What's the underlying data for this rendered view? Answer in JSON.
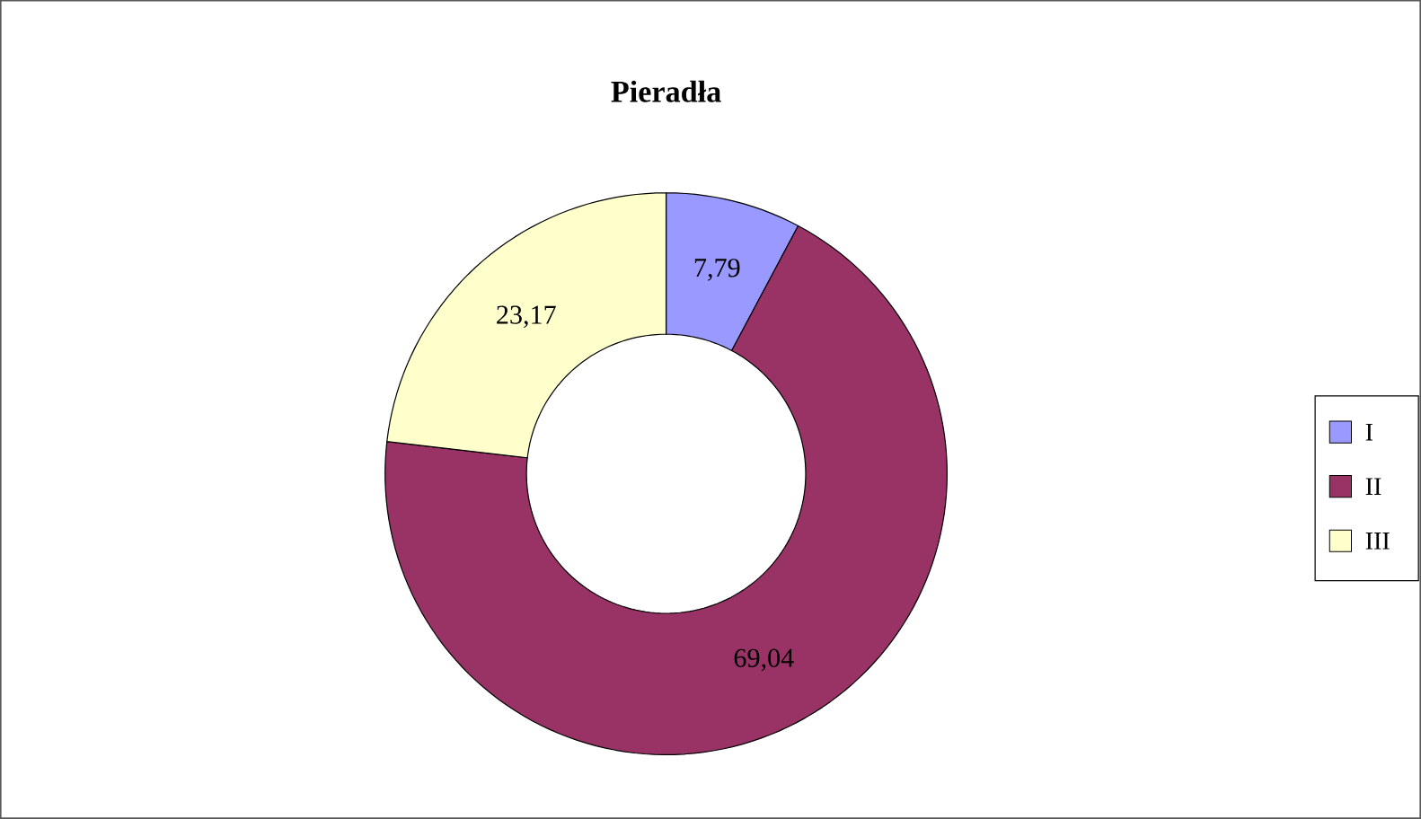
{
  "chart_data": {
    "type": "donut",
    "title": "Pieradła",
    "categories": [
      "I",
      "II",
      "III"
    ],
    "values": [
      7.79,
      69.04,
      23.17
    ],
    "value_labels": [
      "7,79",
      "69,04",
      "23,17"
    ],
    "colors": [
      "#9999ff",
      "#993366",
      "#ffffcc"
    ],
    "legend": "right"
  }
}
